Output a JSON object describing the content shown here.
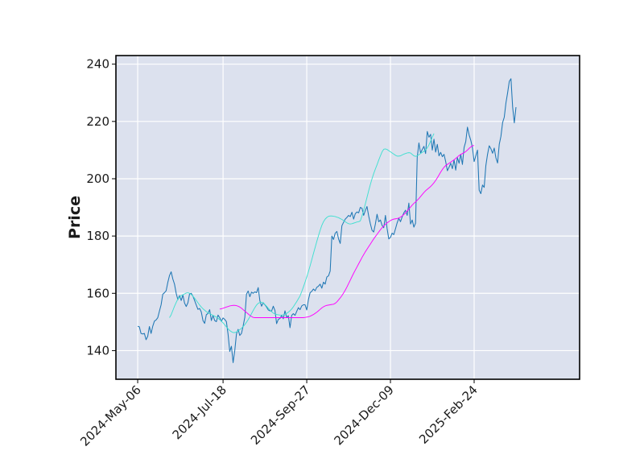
{
  "chart_data": {
    "type": "line",
    "title": "",
    "xlabel": "",
    "ylabel": "Price",
    "x_ticks": [
      "2024-May-06",
      "2024-Jul-18",
      "2024-Sep-27",
      "2024-Dec-09",
      "2025-Feb-24"
    ],
    "x_tick_index": [
      0,
      51,
      101,
      151,
      201
    ],
    "y_ticks": [
      140,
      160,
      180,
      200,
      220,
      240
    ],
    "ylim": [
      130,
      243
    ],
    "xlim": [
      -13,
      264
    ],
    "grid": true,
    "background": "#dce1ee",
    "series": [
      {
        "name": "",
        "color": "#1f77b4",
        "start_index": 0,
        "values": [
          148.5,
          148.3,
          146.0,
          145.8,
          146.0,
          143.8,
          145.0,
          148.4,
          146.0,
          148.5,
          150.3,
          150.7,
          151.5,
          153.8,
          156.0,
          159.7,
          160.2,
          160.9,
          163.8,
          166.2,
          167.5,
          165.0,
          163.2,
          160.0,
          157.8,
          159.2,
          157.5,
          159.4,
          156.6,
          155.4,
          156.7,
          159.8,
          160.0,
          159.0,
          157.5,
          155.9,
          154.4,
          154.7,
          153.5,
          150.5,
          149.5,
          152.5,
          153.0,
          154.3,
          150.5,
          152.3,
          150.5,
          150.1,
          152.4,
          151.5,
          150.2,
          151.4,
          150.9,
          150.1,
          145.7,
          139.7,
          141.5,
          135.8,
          140.0,
          145.8,
          147.4,
          145.3,
          146.0,
          148.6,
          151.6,
          159.7,
          160.8,
          158.8,
          160.4,
          160.0,
          160.5,
          160.2,
          162.0,
          157.4,
          155.5,
          156.7,
          156.0,
          155.2,
          154.2,
          153.9,
          153.8,
          155.5,
          154.0,
          149.4,
          150.9,
          151.2,
          152.3,
          151.1,
          153.9,
          151.6,
          152.2,
          148.0,
          152.3,
          152.9,
          152.3,
          153.7,
          155.0,
          154.3,
          155.6,
          156.0,
          156.0,
          154.2,
          157.8,
          160.2,
          160.7,
          161.5,
          160.9,
          162.1,
          162.5,
          163.2,
          161.8,
          163.9,
          163.2,
          165.7,
          166.1,
          167.8,
          180.0,
          178.8,
          181.0,
          181.6,
          179.0,
          177.4,
          183.6,
          184.8,
          185.9,
          186.5,
          187.2,
          186.8,
          188.3,
          185.9,
          187.8,
          188.4,
          188.1,
          190.0,
          189.7,
          187.2,
          188.9,
          190.3,
          187.0,
          184.3,
          182.0,
          181.4,
          184.2,
          187.6,
          185.0,
          185.6,
          183.7,
          182.9,
          187.2,
          182.6,
          179.0,
          179.5,
          181.0,
          180.5,
          182.5,
          184.6,
          186.2,
          185.0,
          186.7,
          188.1,
          189.0,
          187.2,
          191.5,
          184.2,
          185.6,
          183.1,
          184.5,
          207.5,
          212.5,
          209.0,
          210.2,
          211.3,
          208.8,
          216.5,
          214.5,
          215.5,
          210.0,
          213.8,
          209.3,
          212.0,
          208.0,
          209.2,
          207.7,
          208.5,
          206.0,
          202.8,
          204.0,
          205.4,
          203.5,
          206.6,
          203.0,
          207.4,
          205.4,
          208.5,
          205.0,
          210.9,
          213.0,
          218.0,
          215.3,
          213.4,
          210.8,
          206.0,
          208.0,
          210.0,
          196.0,
          194.8,
          197.8,
          197.0,
          204.6,
          208.5,
          211.5,
          210.5,
          208.9,
          210.7,
          207.3,
          205.5,
          212.0,
          214.8,
          219.6,
          221.5,
          226.5,
          230.0,
          234.0,
          234.9,
          225.0,
          219.5,
          225.0
        ]
      },
      {
        "name": "",
        "color": "#40e0d0",
        "start_index": 19,
        "values": [
          151.5,
          152.5,
          154.0,
          155.5,
          156.8,
          158.0,
          158.6,
          159.2,
          159.5,
          159.8,
          160.1,
          160.2,
          160.0,
          159.6,
          159.0,
          158.3,
          157.5,
          156.7,
          155.9,
          155.2,
          154.6,
          154.1,
          153.6,
          153.2,
          152.9,
          152.6,
          152.3,
          152.0,
          151.7,
          151.3,
          150.8,
          150.3,
          149.7,
          149.0,
          148.3,
          147.6,
          147.0,
          146.6,
          146.3,
          146.3,
          146.5,
          146.9,
          147.3,
          147.8,
          148.4,
          149.1,
          149.9,
          150.8,
          151.8,
          152.9,
          154.0,
          155.0,
          155.9,
          156.5,
          156.8,
          156.9,
          156.6,
          156.1,
          155.5,
          154.8,
          154.2,
          153.6,
          153.1,
          152.8,
          152.6,
          152.5,
          152.4,
          152.4,
          152.5,
          152.7,
          153.0,
          153.4,
          153.9,
          154.5,
          155.3,
          156.2,
          157.1,
          158.1,
          159.1,
          160.6,
          162.2,
          163.9,
          165.7,
          167.6,
          169.6,
          171.7,
          173.9,
          176.0,
          178.1,
          180.1,
          182.0,
          183.7,
          185.0,
          185.9,
          186.5,
          186.9,
          187.0,
          187.0,
          186.9,
          186.8,
          186.6,
          186.4,
          186.1,
          185.8,
          185.4,
          185.0,
          184.6,
          184.3,
          184.2,
          184.3,
          184.5,
          184.7,
          184.9,
          185.0,
          185.3,
          187.0,
          189.0,
          191.2,
          193.5,
          195.8,
          198.0,
          200.0,
          201.8,
          203.4,
          204.9,
          206.5,
          208.0,
          209.4,
          210.3,
          210.4,
          210.2,
          209.8,
          209.4,
          209.0,
          208.6,
          208.2,
          207.9,
          207.9,
          208.0,
          208.3,
          208.6,
          208.8,
          209.0,
          209.1,
          209.0,
          208.5,
          208.0,
          207.8,
          208.0,
          208.4,
          208.8,
          209.2,
          209.6,
          210.1,
          210.8,
          211.8,
          213.1,
          214.5,
          215.8
        ]
      },
      {
        "name": "",
        "color": "#ff00ff",
        "start_index": 49,
        "values": [
          154.5,
          154.6,
          154.8,
          155.0,
          155.2,
          155.4,
          155.6,
          155.7,
          155.8,
          155.8,
          155.7,
          155.5,
          155.2,
          154.8,
          154.3,
          153.8,
          153.3,
          152.8,
          152.3,
          151.9,
          151.6,
          151.5,
          151.5,
          151.5,
          151.5,
          151.5,
          151.5,
          151.5,
          151.5,
          151.5,
          151.5,
          151.5,
          151.5,
          151.5,
          151.5,
          151.5,
          151.5,
          151.5,
          151.5,
          151.5,
          151.5,
          151.5,
          151.5,
          151.5,
          151.5,
          151.5,
          151.5,
          151.5,
          151.5,
          151.5,
          151.5,
          151.6,
          151.7,
          151.8,
          152.0,
          152.3,
          152.6,
          153.0,
          153.4,
          153.9,
          154.4,
          154.9,
          155.3,
          155.6,
          155.8,
          155.9,
          156.0,
          156.1,
          156.2,
          156.5,
          157.0,
          157.7,
          158.4,
          159.2,
          160.1,
          161.1,
          162.2,
          163.4,
          164.6,
          165.8,
          167.0,
          168.1,
          169.2,
          170.3,
          171.4,
          172.5,
          173.5,
          174.5,
          175.4,
          176.3,
          177.2,
          178.1,
          179.0,
          179.8,
          180.6,
          181.4,
          182.2,
          182.9,
          183.5,
          184.1,
          184.6,
          185.0,
          185.4,
          185.7,
          185.9,
          186.0,
          186.1,
          186.3,
          186.6,
          187.0,
          187.5,
          188.1,
          188.7,
          189.4,
          190.1,
          190.8,
          191.4,
          191.9,
          192.5,
          193.1,
          193.8,
          194.5,
          195.2,
          195.8,
          196.3,
          196.8,
          197.3,
          197.9,
          198.6,
          199.4,
          200.3,
          201.3,
          202.3,
          203.2,
          204.0,
          204.6,
          205.0,
          205.4,
          205.8,
          206.2,
          206.6,
          207.1,
          207.6,
          208.1,
          208.5,
          208.8,
          209.1,
          209.5,
          210.0,
          210.6,
          211.1,
          211.5,
          211.6
        ]
      }
    ]
  }
}
